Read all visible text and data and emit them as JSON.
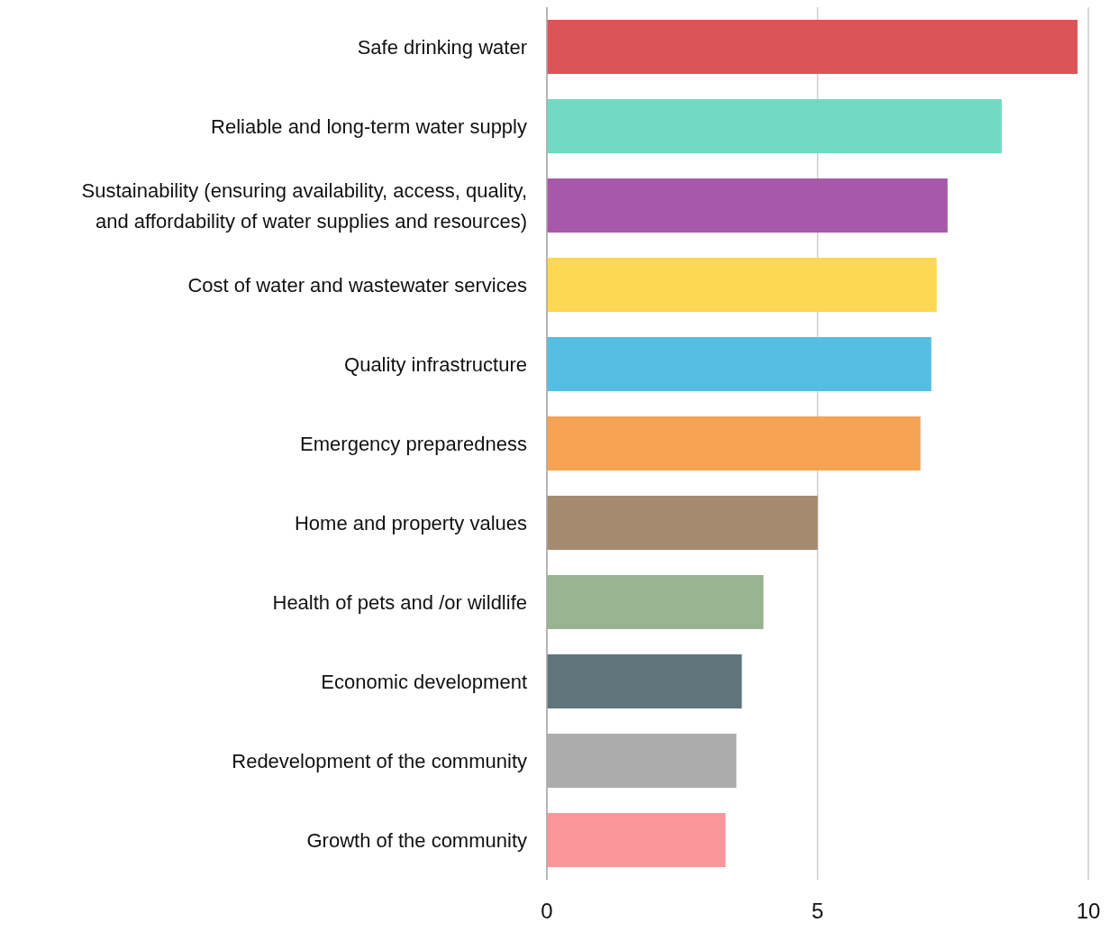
{
  "chart_data": {
    "type": "bar",
    "orientation": "horizontal",
    "categories": [
      "Safe drinking water",
      "Reliable and long-term water supply",
      "Sustainability (ensuring availability, access, quality, and affordability of water supplies and resources)",
      "Cost of water and wastewater services",
      "Quality infrastructure",
      "Emergency preparedness",
      "Home and property values",
      "Health of pets and /or wildlife",
      "Economic development",
      "Redevelopment of the community",
      "Growth of the community"
    ],
    "values": [
      9.8,
      8.4,
      7.4,
      7.2,
      7.1,
      6.9,
      5.0,
      4.0,
      3.6,
      3.5,
      3.3
    ],
    "colors": [
      "#d94b4f",
      "#6ad8bf",
      "#a34fa3",
      "#fed54a",
      "#4dbae1",
      "#f59e4c",
      "#a08468",
      "#94b08a",
      "#566f73",
      "#a8a8a8",
      "#fd9096"
    ],
    "xlim": [
      0,
      10
    ],
    "xticks": [
      0,
      5,
      10
    ],
    "grid": "x",
    "legend": false
  }
}
